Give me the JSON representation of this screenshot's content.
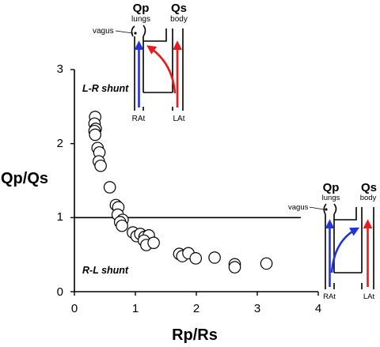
{
  "chart_data": {
    "type": "scatter",
    "xlabel": "Rp/Rs",
    "ylabel": "Qp/Qs",
    "xlim": [
      0,
      4
    ],
    "ylim": [
      0,
      3
    ],
    "xticks": [
      "0",
      "1",
      "2",
      "3",
      "4"
    ],
    "yticks": [
      "0",
      "1",
      "2",
      "3"
    ],
    "reference_line_y": 1,
    "grid": false,
    "legend": "none",
    "marker": "open-circle",
    "region_labels": {
      "upper": "L-R shunt",
      "lower": "R-L shunt"
    },
    "points": [
      {
        "x": 0.34,
        "y": 2.36
      },
      {
        "x": 0.33,
        "y": 2.27
      },
      {
        "x": 0.35,
        "y": 2.2
      },
      {
        "x": 0.33,
        "y": 2.17
      },
      {
        "x": 0.34,
        "y": 2.12
      },
      {
        "x": 0.38,
        "y": 1.94
      },
      {
        "x": 0.41,
        "y": 1.88
      },
      {
        "x": 0.4,
        "y": 1.76
      },
      {
        "x": 0.43,
        "y": 1.7
      },
      {
        "x": 0.58,
        "y": 1.41
      },
      {
        "x": 0.68,
        "y": 1.17
      },
      {
        "x": 0.72,
        "y": 1.14
      },
      {
        "x": 0.71,
        "y": 1.04
      },
      {
        "x": 0.79,
        "y": 0.97
      },
      {
        "x": 0.75,
        "y": 0.94
      },
      {
        "x": 0.78,
        "y": 0.89
      },
      {
        "x": 0.96,
        "y": 0.8
      },
      {
        "x": 1.02,
        "y": 0.75
      },
      {
        "x": 1.08,
        "y": 0.78
      },
      {
        "x": 1.15,
        "y": 0.74
      },
      {
        "x": 1.22,
        "y": 0.76
      },
      {
        "x": 1.14,
        "y": 0.69
      },
      {
        "x": 1.18,
        "y": 0.63
      },
      {
        "x": 1.3,
        "y": 0.66
      },
      {
        "x": 1.72,
        "y": 0.51
      },
      {
        "x": 1.77,
        "y": 0.48
      },
      {
        "x": 1.87,
        "y": 0.52
      },
      {
        "x": 1.99,
        "y": 0.45
      },
      {
        "x": 2.3,
        "y": 0.46
      },
      {
        "x": 2.63,
        "y": 0.37
      },
      {
        "x": 2.63,
        "y": 0.33
      },
      {
        "x": 3.15,
        "y": 0.38
      }
    ]
  },
  "insets": {
    "lr": {
      "pulm": "Qp",
      "pulm_sub": "lungs",
      "sys": "Qs",
      "sys_sub": "body",
      "nerve": "vagus",
      "right_atrium": "RAt",
      "left_atrium": "LAt"
    },
    "rl": {
      "pulm": "Qp",
      "pulm_sub": "lungs",
      "sys": "Qs",
      "sys_sub": "body",
      "nerve": "vagus",
      "right_atrium": "RAt",
      "left_atrium": "LAt"
    }
  },
  "colors": {
    "pulmonary_flow": "#2233d8",
    "systemic_flow": "#e81a1a",
    "marker_fill": "#ffffff",
    "ink": "#000000"
  }
}
